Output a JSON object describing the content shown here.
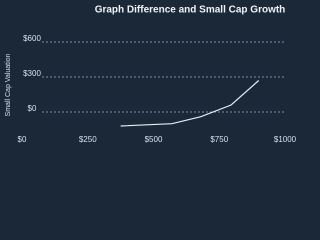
{
  "chart_data": {
    "type": "line",
    "title": "Graph Difference and Small Cap Growth",
    "y_label": "Small Cap Valuation",
    "x": [
      375,
      570,
      680,
      795,
      900
    ],
    "series": [
      {
        "color": "#e6edf3",
        "values": [
          -120,
          -100,
          -40,
          60,
          270
        ]
      }
    ],
    "xlim": [
      0,
      1000
    ],
    "xticks": [
      {
        "value": 0,
        "label": "$0"
      },
      {
        "value": 250,
        "label": "$250"
      },
      {
        "value": 500,
        "label": "$500"
      },
      {
        "value": 750,
        "label": "$750"
      },
      {
        "value": 1000,
        "label": "$1000"
      }
    ],
    "ylim": [
      -150,
      600
    ],
    "yticks": [
      {
        "value": 0,
        "label": "$0"
      },
      {
        "value": 300,
        "label": "$300"
      },
      {
        "value": 600,
        "label": "$600"
      }
    ],
    "grid": true
  }
}
